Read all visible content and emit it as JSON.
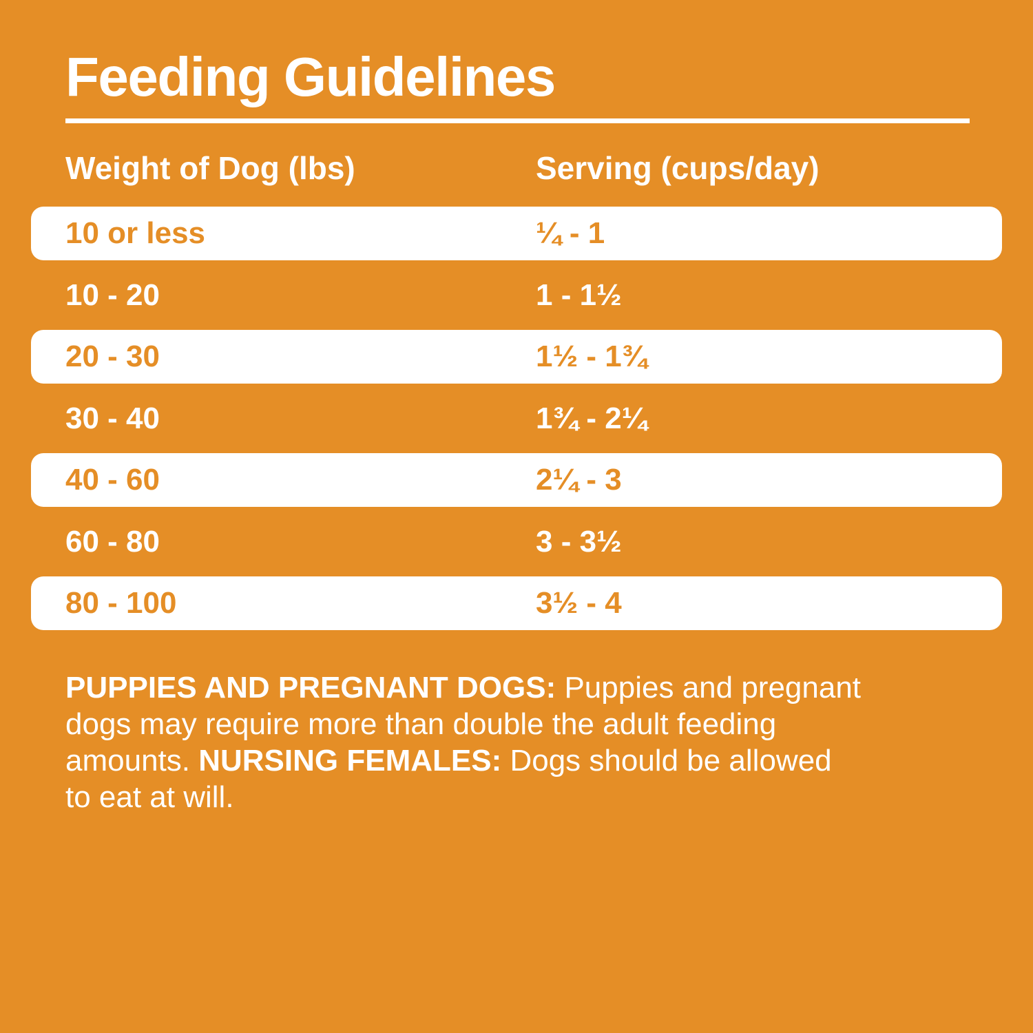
{
  "title": "Feeding Guidelines",
  "colors": {
    "background": "#E58E26",
    "accent_text": "#E58E26",
    "row_highlight": "#FFFFFF",
    "text": "#FFFFFF"
  },
  "table": {
    "headers": [
      "Weight of Dog (lbs)",
      "Serving (cups/day)"
    ],
    "rows": [
      {
        "weight": "10 or less",
        "serving": "¼ - 1",
        "highlight": true
      },
      {
        "weight": "10 - 20",
        "serving": "1 - 1½",
        "highlight": false
      },
      {
        "weight": "20 - 30",
        "serving": "1½ - 1¾",
        "highlight": true
      },
      {
        "weight": "30 - 40",
        "serving": "1¾ - 2¼",
        "highlight": false
      },
      {
        "weight": "40 - 60",
        "serving": "2¼ - 3",
        "highlight": true
      },
      {
        "weight": "60 - 80",
        "serving": "3 - 3½",
        "highlight": false
      },
      {
        "weight": "80 - 100",
        "serving": "3½ - 4",
        "highlight": true
      }
    ]
  },
  "notes": {
    "lines": [
      [
        {
          "text": "PUPPIES AND PREGNANT DOGS:",
          "bold": true
        },
        {
          "text": " Puppies and pregnant",
          "bold": false
        }
      ],
      [
        {
          "text": "dogs may require more than double the adult feeding",
          "bold": false
        }
      ],
      [
        {
          "text": "amounts. ",
          "bold": false
        },
        {
          "text": "NURSING FEMALES:",
          "bold": true
        },
        {
          "text": " Dogs should be allowed",
          "bold": false
        }
      ],
      [
        {
          "text": "to eat at will.",
          "bold": false
        }
      ]
    ]
  }
}
